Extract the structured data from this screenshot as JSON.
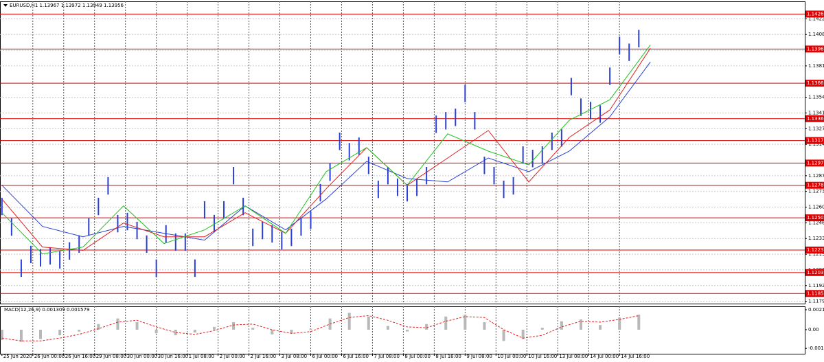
{
  "chart_data": [
    {
      "type": "ohlc",
      "title": "EURUSD,H1  1.13967 1.13972 1.13949 1.13956",
      "color": "#2a3fd6",
      "x": [
        0,
        5,
        10,
        15,
        20,
        25,
        30,
        35,
        40,
        45,
        50,
        55,
        60,
        65,
        70,
        75,
        80,
        85,
        90,
        95,
        100,
        105,
        110,
        115,
        120,
        125,
        130,
        135,
        140,
        145,
        150,
        155,
        160,
        165,
        170,
        175,
        180,
        185,
        190,
        195,
        200,
        205,
        210,
        215,
        220,
        225,
        230,
        235,
        240,
        245,
        250,
        255,
        260,
        265,
        270,
        275,
        280,
        285,
        290,
        295,
        300,
        305,
        310,
        315,
        320,
        325,
        330
      ],
      "high": [
        1.12681,
        1.12504,
        1.1215,
        1.12268,
        1.12239,
        1.12256,
        1.12221,
        1.12298,
        1.12357,
        1.12504,
        1.12681,
        1.12858,
        1.12533,
        1.12551,
        1.12474,
        1.12357,
        1.1215,
        1.12445,
        1.12374,
        1.12374,
        1.1215,
        1.12651,
        1.12533,
        1.12651,
        1.12946,
        1.12681,
        1.12415,
        1.12474,
        1.12445,
        1.12386,
        1.12415,
        1.12504,
        1.12563,
        1.12799,
        1.12975,
        1.13241,
        1.13152,
        1.13199,
        1.13034,
        1.12828,
        1.12946,
        1.12846,
        1.12799,
        1.12846,
        1.12946,
        1.13388,
        1.13418,
        1.13447,
        1.13653,
        1.13418,
        1.13034,
        1.12946,
        1.12828,
        1.12858,
        1.13123,
        1.13093,
        1.13123,
        1.13241,
        1.1327,
        1.13712,
        1.13535,
        1.13506,
        1.13476,
        1.13801,
        1.14066,
        1.14007,
        1.14125
      ],
      "low": [
        1.12531,
        1.12354,
        1.12,
        1.12118,
        1.12089,
        1.12106,
        1.12071,
        1.12148,
        1.12207,
        1.12354,
        1.12531,
        1.12708,
        1.12383,
        1.12401,
        1.12324,
        1.12207,
        1.12,
        1.12295,
        1.12224,
        1.12224,
        1.12,
        1.12501,
        1.12383,
        1.12501,
        1.12796,
        1.12531,
        1.12265,
        1.12324,
        1.12295,
        1.12236,
        1.12265,
        1.12354,
        1.12413,
        1.12649,
        1.12825,
        1.13091,
        1.13002,
        1.13049,
        1.12884,
        1.12678,
        1.12796,
        1.12696,
        1.12649,
        1.12696,
        1.12796,
        1.13238,
        1.13268,
        1.13297,
        1.13503,
        1.13268,
        1.12884,
        1.12796,
        1.12678,
        1.12708,
        1.12973,
        1.12943,
        1.12973,
        1.13091,
        1.1312,
        1.13562,
        1.13385,
        1.13356,
        1.13326,
        1.13651,
        1.13916,
        1.13857,
        1.13975
      ],
      "lines": [
        {
          "color": "#2a3fd6",
          "x": [
            0,
            21,
            42,
            63,
            84,
            105,
            126,
            147,
            168,
            189,
            210,
            231,
            252,
            273,
            294,
            315,
            336
          ],
          "values": [
            1.12788,
            1.12434,
            1.12345,
            1.12434,
            1.12375,
            1.12316,
            1.12611,
            1.12404,
            1.1267,
            1.12994,
            1.12846,
            1.12817,
            1.13023,
            1.12905,
            1.13082,
            1.13377,
            1.13849
          ]
        },
        {
          "color": "#e02020",
          "x": [
            0,
            21,
            42,
            63,
            84,
            105,
            126,
            147,
            168,
            189,
            210,
            231,
            252,
            273,
            294,
            315,
            336
          ],
          "values": [
            1.1267,
            1.12257,
            1.12228,
            1.12463,
            1.12345,
            1.12345,
            1.12552,
            1.12375,
            1.12758,
            1.13112,
            1.12788,
            1.13023,
            1.13259,
            1.12817,
            1.132,
            1.13436,
            1.13967
          ]
        },
        {
          "color": "#20c020",
          "x": [
            0,
            21,
            42,
            63,
            84,
            105,
            126,
            147,
            168,
            189,
            210,
            231,
            252,
            273,
            294,
            315,
            336
          ],
          "values": [
            1.12552,
            1.12198,
            1.12257,
            1.12611,
            1.12287,
            1.12404,
            1.12611,
            1.12375,
            1.12905,
            1.13112,
            1.12788,
            1.1323,
            1.13082,
            1.12964,
            1.13348,
            1.13524,
            1.13996
          ]
        }
      ],
      "levels": [
        1.14261,
        {
          "value": 1.1396,
          "label": "1.13960"
        },
        1.13666,
        1.13361,
        1.13173,
        1.12979,
        1.12788,
        1.12508,
        1.12231,
        1.12037,
        1.11857
      ],
      "levels_color": "#e00000",
      "ylim": [
        1.1177,
        1.1437
      ],
      "yticks": [
        {
          "value": 1.1422,
          "label": "1.14220"
        },
        1.14085,
        {
          "value": 1.1395,
          "label": "1.13950"
        },
        1.13815,
        1.13545,
        {
          "value": 1.1341,
          "label": "1.13410"
        },
        1.13275,
        {
          "value": 1.1314,
          "label": "1.13140"
        },
        {
          "value": 1.1287,
          "label": "1.12870"
        },
        1.12735,
        {
          "value": 1.126,
          "label": "1.12600"
        },
        1.12465,
        {
          "value": 1.1233,
          "label": "1.12330"
        },
        1.12195,
        {
          "value": 1.1206,
          "label": "1.12060"
        },
        1.11925,
        {
          "value": 1.1179,
          "label": "1.11790"
        }
      ],
      "xlim": [
        -1,
        416
      ],
      "xticks": [
        {
          "value": 0,
          "label": "25 Jun 2020"
        },
        {
          "value": 16,
          "label": "26 Jun 00:00"
        },
        {
          "value": 32,
          "label": "26 Jun 16:00"
        },
        {
          "value": 48,
          "label": "29 Jun 08:00"
        },
        {
          "value": 64,
          "label": "30 Jun 00:00"
        },
        {
          "value": 80,
          "label": "30 Jun 16:00"
        },
        {
          "value": 96,
          "label": "1 Jul 08:00"
        },
        {
          "value": 112,
          "label": "2 Jul 00:00"
        },
        {
          "value": 128,
          "label": "2 Jul 16:00"
        },
        {
          "value": 144,
          "label": "3 Jul 08:00"
        },
        {
          "value": 160,
          "label": "6 Jul 00:00"
        },
        {
          "value": 176,
          "label": "6 Jul 16:00"
        },
        {
          "value": 192,
          "label": "7 Jul 08:00"
        },
        {
          "value": 208,
          "label": "8 Jul 00:00"
        },
        {
          "value": 224,
          "label": "8 Jul 16:00"
        },
        {
          "value": 240,
          "label": "9 Jul 08:00"
        },
        {
          "value": 256,
          "label": "10 Jul 00:00"
        },
        {
          "value": 272,
          "label": "10 Jul 16:00"
        },
        {
          "value": 288,
          "label": "13 Jul 08:00"
        },
        {
          "value": 304,
          "label": "14 Jul 00:00"
        },
        {
          "value": 320,
          "label": "14 Jul 16:00"
        }
      ],
      "grid": true
    },
    {
      "type": "macd",
      "title": "MACD(12,26,9) 0.001309 0.001579",
      "x": [
        0,
        10,
        20,
        30,
        40,
        50,
        60,
        70,
        80,
        90,
        100,
        110,
        120,
        130,
        140,
        150,
        160,
        170,
        180,
        190,
        200,
        210,
        220,
        230,
        240,
        250,
        260,
        270,
        280,
        290,
        300,
        310,
        320,
        330
      ],
      "values": [
        -0.0011,
        -0.0013,
        -0.001,
        -0.0006,
        -0.0002,
        0.0006,
        0.0012,
        0.0008,
        -0.0004,
        -0.0006,
        -0.0003,
        0.0003,
        0.0008,
        0.0002,
        -0.0005,
        -0.0004,
        0.0001,
        0.0012,
        0.0018,
        0.0014,
        0.0004,
        -0.0002,
        0.0006,
        0.0014,
        0.0016,
        0.0008,
        -0.0012,
        -0.001,
        0.0002,
        0.0009,
        0.0011,
        0.0005,
        0.0013,
        0.0016
      ],
      "color": "#b8b8b8",
      "signal": [
        -0.0009,
        -0.0012,
        -0.0012,
        -0.0009,
        -0.0005,
        0.0001,
        0.0008,
        0.001,
        0.0003,
        -0.0003,
        -0.0005,
        -0.0001,
        0.0005,
        0.0006,
        0,
        -0.0004,
        -0.0002,
        0.0006,
        0.0013,
        0.0015,
        0.001,
        0.0003,
        0.0002,
        0.0009,
        0.0014,
        0.0013,
        0,
        -0.0009,
        -0.0006,
        0.0003,
        0.0009,
        0.0008,
        0.0011,
        0.0015
      ],
      "signal_color": "#e02020",
      "ylim": [
        -0.00257,
        0.00249
      ],
      "yticks": [
        0.002126,
        {
          "value": 0,
          "label": "0.00"
        },
        -0.001994
      ]
    }
  ]
}
